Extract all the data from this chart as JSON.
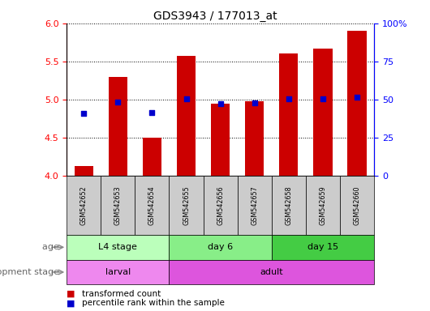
{
  "title": "GDS3943 / 177013_at",
  "samples": [
    "GSM542652",
    "GSM542653",
    "GSM542654",
    "GSM542655",
    "GSM542656",
    "GSM542657",
    "GSM542658",
    "GSM542659",
    "GSM542660"
  ],
  "transformed_count": [
    4.13,
    5.3,
    4.5,
    5.57,
    4.95,
    4.98,
    5.6,
    5.67,
    5.9
  ],
  "percentile_rank": [
    4.82,
    4.97,
    4.83,
    5.01,
    4.95,
    4.96,
    5.01,
    5.01,
    5.03
  ],
  "ylim": [
    4.0,
    6.0
  ],
  "yticks_left": [
    4.0,
    4.5,
    5.0,
    5.5,
    6.0
  ],
  "yticks_right": [
    0,
    25,
    50,
    75,
    100
  ],
  "bar_color": "#CC0000",
  "point_color": "#0000CC",
  "bar_bottom": 4.0,
  "age_groups": [
    {
      "label": "L4 stage",
      "start": 0,
      "end": 3,
      "color": "#BBFFBB"
    },
    {
      "label": "day 6",
      "start": 3,
      "end": 6,
      "color": "#88EE88"
    },
    {
      "label": "day 15",
      "start": 6,
      "end": 9,
      "color": "#44CC44"
    }
  ],
  "dev_groups": [
    {
      "label": "larval",
      "start": 0,
      "end": 3,
      "color": "#EE88EE"
    },
    {
      "label": "adult",
      "start": 3,
      "end": 9,
      "color": "#DD55DD"
    }
  ],
  "age_label": "age",
  "dev_label": "development stage",
  "legend_bar": "transformed count",
  "legend_point": "percentile rank within the sample",
  "background_color": "#FFFFFF",
  "plot_bg_color": "#FFFFFF",
  "sample_bg_color": "#CCCCCC"
}
